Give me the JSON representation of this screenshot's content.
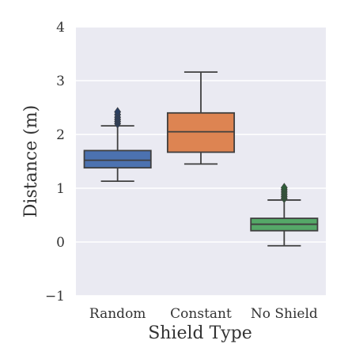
{
  "chart_data": {
    "type": "box",
    "title": "",
    "xlabel": "Shield Type",
    "ylabel": "Distance (m)",
    "ylim": [
      -1,
      4
    ],
    "yticks": [
      -1,
      0,
      1,
      2,
      3,
      4
    ],
    "ytick_labels": [
      "−1",
      "0",
      "1",
      "2",
      "3",
      "4"
    ],
    "grid": true,
    "categories": [
      "Random",
      "Constant",
      "No Shield"
    ],
    "series": [
      {
        "category": "Random",
        "color": "#4c72b0",
        "whisker_low": 1.13,
        "q1": 1.38,
        "median": 1.52,
        "q3": 1.7,
        "whisker_high": 2.16,
        "outliers": [
          2.2,
          2.24,
          2.28,
          2.32,
          2.37,
          2.42
        ]
      },
      {
        "category": "Constant",
        "color": "#dd8452",
        "whisker_low": 1.45,
        "q1": 1.67,
        "median": 2.05,
        "q3": 2.4,
        "whisker_high": 3.16,
        "outliers": []
      },
      {
        "category": "No Shield",
        "color": "#55a868",
        "whisker_low": -0.07,
        "q1": 0.21,
        "median": 0.33,
        "q3": 0.44,
        "whisker_high": 0.78,
        "outliers": [
          0.81,
          0.85,
          0.89,
          0.93,
          0.97,
          1.01
        ]
      }
    ]
  }
}
